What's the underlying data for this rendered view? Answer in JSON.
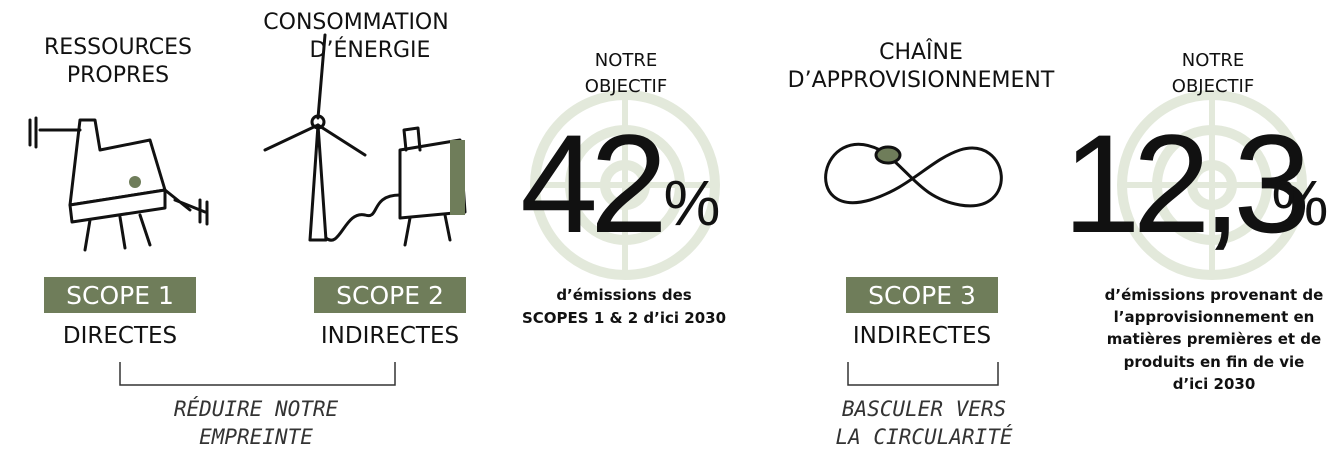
{
  "columns": [
    {
      "heading": [
        "RESSOURCES",
        "PROPRES"
      ],
      "scope": "SCOPE 1",
      "kind": "DIRECTES"
    },
    {
      "heading": [
        "CONSOMMATION",
        "D’ÉNERGIE"
      ],
      "scope": "SCOPE 2",
      "kind": "INDIRECTES"
    },
    {
      "heading": [
        "CHAÎNE",
        "D’APPROVISIONNEMENT"
      ],
      "scope": "SCOPE 3",
      "kind": "INDIRECTES"
    }
  ],
  "goals": [
    {
      "heading": [
        "NOTRE",
        "OBJECTIF"
      ],
      "number": "42",
      "unit": "%",
      "text": [
        "d’émissions des",
        "SCOPES 1 & 2 d’ici 2030"
      ]
    },
    {
      "heading": [
        "NOTRE",
        "OBJECTIF"
      ],
      "number": "12,3",
      "unit": "%",
      "text": [
        "d’émissions provenant de",
        "l’approvisionnement en",
        "matières premières et de",
        "produits en fin de vie",
        "d’ici 2030"
      ]
    }
  ],
  "brackets": [
    {
      "text": [
        "RÉDUIRE NOTRE",
        "EMPREINTE"
      ]
    },
    {
      "text": [
        "BASCULER VERS",
        "LA CIRCULARITÉ"
      ]
    }
  ]
}
